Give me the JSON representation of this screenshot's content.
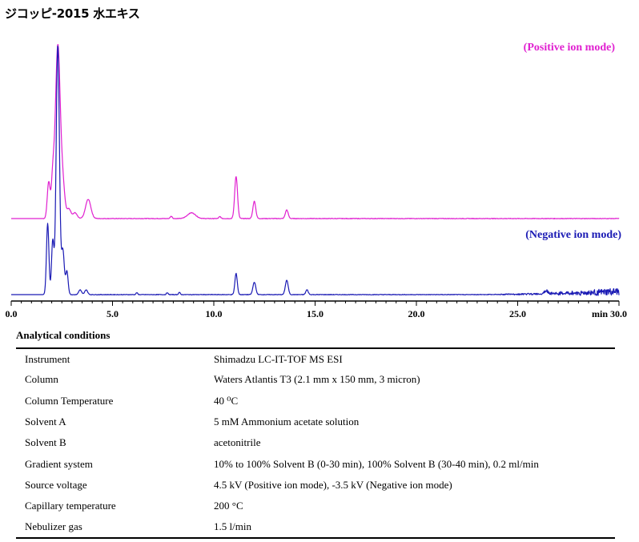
{
  "title": "ジコッピ-2015 水エキス",
  "chart_data": {
    "type": "line",
    "xlim": [
      0,
      30
    ],
    "ticks": [
      "0.0",
      "5.0",
      "10.0",
      "15.0",
      "20.0",
      "25.0",
      "30.0"
    ],
    "x_unit": "min",
    "series": [
      {
        "name": "(Positive ion mode)",
        "color": "#e020d0",
        "baseline_noise": "low",
        "peaks": [
          {
            "rt": 1.85,
            "height": 0.19,
            "width": 0.07
          },
          {
            "rt": 2.05,
            "height": 0.19,
            "width": 0.07
          },
          {
            "rt": 2.3,
            "height": 0.9,
            "width": 0.12
          },
          {
            "rt": 2.55,
            "height": 0.16,
            "width": 0.1
          },
          {
            "rt": 2.85,
            "height": 0.05,
            "width": 0.1
          },
          {
            "rt": 3.15,
            "height": 0.03,
            "width": 0.1
          },
          {
            "rt": 3.8,
            "height": 0.1,
            "width": 0.13
          },
          {
            "rt": 7.9,
            "height": 0.012,
            "width": 0.05
          },
          {
            "rt": 8.9,
            "height": 0.03,
            "width": 0.2
          },
          {
            "rt": 10.3,
            "height": 0.01,
            "width": 0.05
          },
          {
            "rt": 11.1,
            "height": 0.22,
            "width": 0.07
          },
          {
            "rt": 12.0,
            "height": 0.09,
            "width": 0.07
          },
          {
            "rt": 13.6,
            "height": 0.045,
            "width": 0.07
          }
        ]
      },
      {
        "name": "(Negative ion mode)",
        "color": "#1a1ab4",
        "baseline_noise": "rising",
        "peaks": [
          {
            "rt": 1.8,
            "height": 0.37,
            "width": 0.06
          },
          {
            "rt": 2.05,
            "height": 0.28,
            "width": 0.06
          },
          {
            "rt": 2.3,
            "height": 1.3,
            "width": 0.08
          },
          {
            "rt": 2.55,
            "height": 0.23,
            "width": 0.07
          },
          {
            "rt": 2.75,
            "height": 0.12,
            "width": 0.06
          },
          {
            "rt": 3.4,
            "height": 0.025,
            "width": 0.07
          },
          {
            "rt": 3.7,
            "height": 0.025,
            "width": 0.07
          },
          {
            "rt": 6.2,
            "height": 0.01,
            "width": 0.04
          },
          {
            "rt": 7.7,
            "height": 0.01,
            "width": 0.04
          },
          {
            "rt": 8.3,
            "height": 0.012,
            "width": 0.04
          },
          {
            "rt": 11.1,
            "height": 0.11,
            "width": 0.06
          },
          {
            "rt": 12.0,
            "height": 0.065,
            "width": 0.07
          },
          {
            "rt": 13.6,
            "height": 0.075,
            "width": 0.07
          },
          {
            "rt": 14.6,
            "height": 0.025,
            "width": 0.06
          },
          {
            "rt": 26.4,
            "height": 0.015,
            "width": 0.1
          }
        ]
      }
    ]
  },
  "conditions": {
    "heading": "Analytical conditions",
    "rows": [
      {
        "label": "Instrument",
        "value": "Shimadzu LC-IT-TOF MS ESI"
      },
      {
        "label": "Column",
        "value": "Waters Atlantis T3 (2.1 mm x 150 mm, 3 micron)"
      },
      {
        "label": "Column Temperature",
        "value": "40 ⁰C"
      },
      {
        "label": "Solvent A",
        "value": "5 mM Ammonium acetate solution"
      },
      {
        "label": "Solvent B",
        "value": "acetonitrile"
      },
      {
        "label": "Gradient system",
        "value": "10% to 100% Solvent B (0-30 min), 100% Solvent B (30-40 min), 0.2 ml/min"
      },
      {
        "label": "Source voltage",
        "value": "4.5 kV (Positive ion mode), -3.5 kV (Negative ion mode)"
      },
      {
        "label": "Capillary temperature",
        "value": "200 °C"
      },
      {
        "label": "Nebulizer gas",
        "value": "1.5 l/min"
      }
    ]
  }
}
